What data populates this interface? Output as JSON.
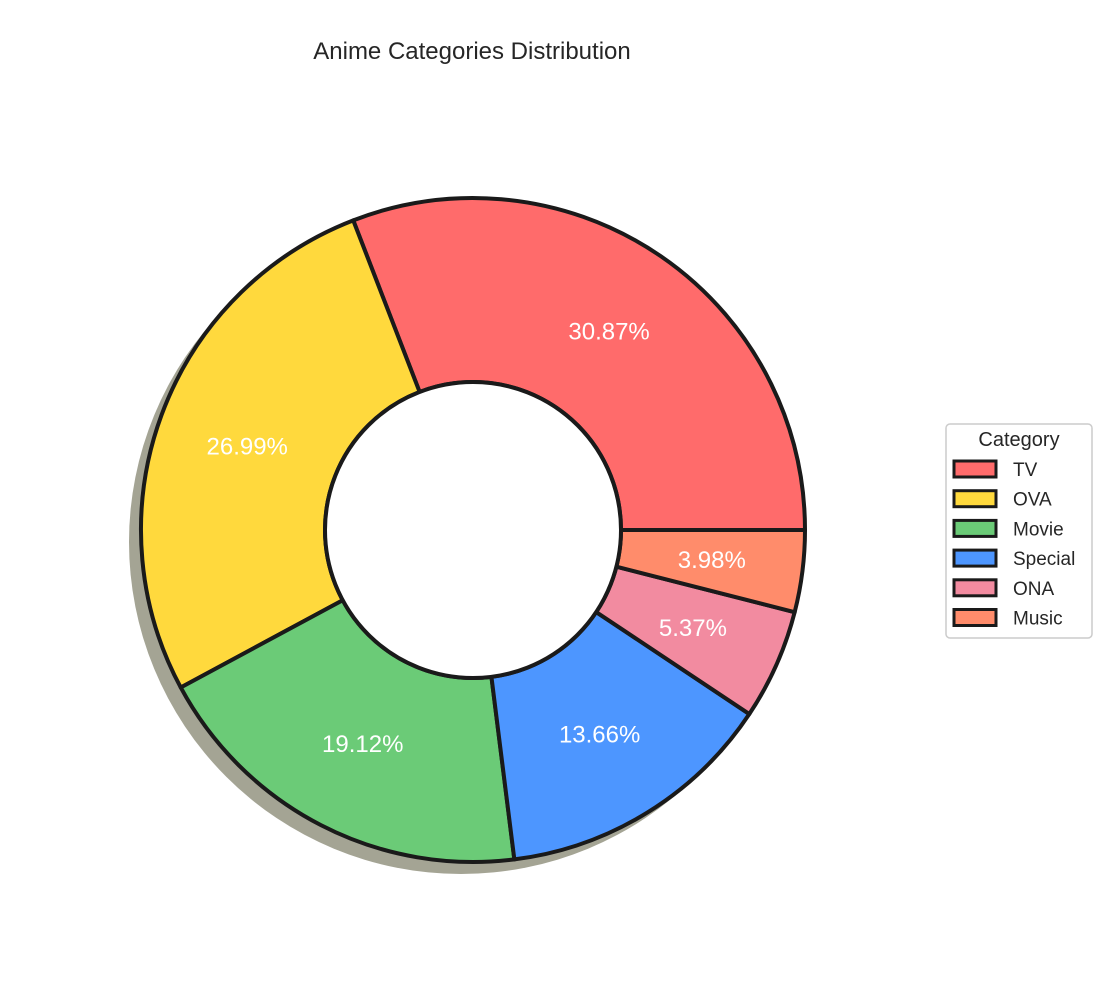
{
  "chart_data": {
    "type": "pie",
    "title": "Anime Categories Distribution",
    "categories": [
      "TV",
      "OVA",
      "Movie",
      "Special",
      "ONA",
      "Music"
    ],
    "values": [
      30.87,
      26.99,
      19.12,
      13.66,
      5.37,
      3.98
    ],
    "value_labels": [
      "30.87%",
      "26.99%",
      "19.12%",
      "13.66%",
      "5.37%",
      "3.98%"
    ],
    "colors": [
      "#ff6b6b",
      "#ffd93d",
      "#6bcb77",
      "#4d96ff",
      "#f28ba0",
      "#ff8c6b"
    ],
    "donut": true,
    "legend": {
      "title": "Category",
      "placement": "right"
    }
  }
}
